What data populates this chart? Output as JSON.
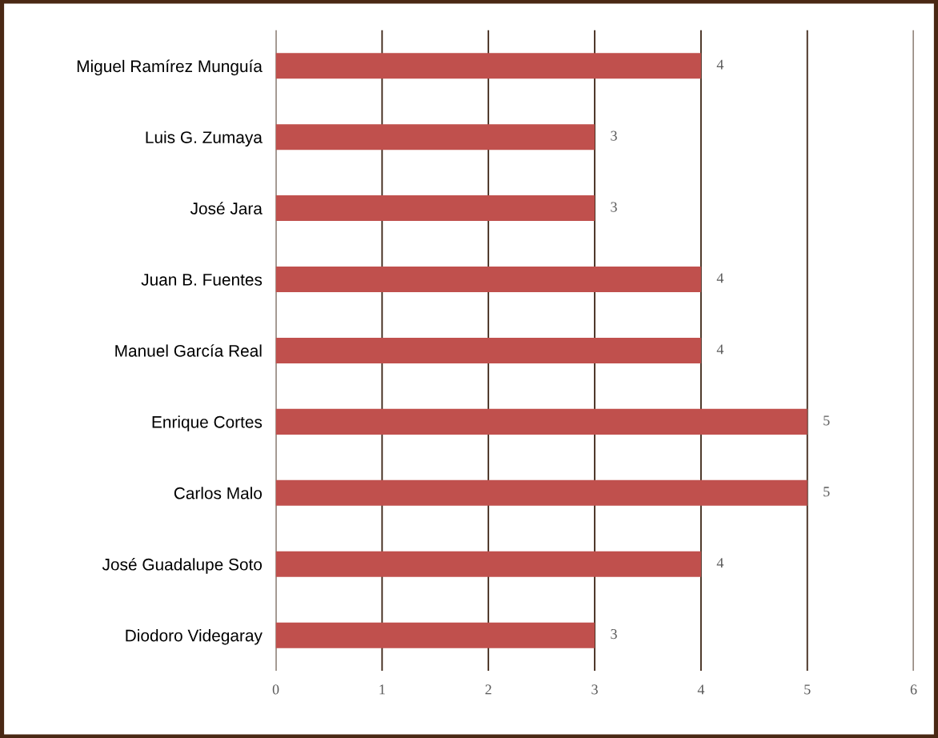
{
  "chart_data": {
    "type": "bar",
    "orientation": "horizontal",
    "categories": [
      "Miguel Ramírez Munguía",
      "Luis G. Zumaya",
      "José Jara",
      "Juan B. Fuentes",
      "Manuel García Real",
      "Enrique Cortes",
      "Carlos Malo",
      "José Guadalupe Soto",
      "Diodoro Videgaray"
    ],
    "values": [
      4,
      3,
      3,
      4,
      4,
      5,
      5,
      4,
      3
    ],
    "color": "#c0504d",
    "xlim": [
      0,
      6
    ],
    "xticks": [
      0,
      1,
      2,
      3,
      4,
      5,
      6
    ],
    "grid": "x",
    "data_labels": true
  }
}
